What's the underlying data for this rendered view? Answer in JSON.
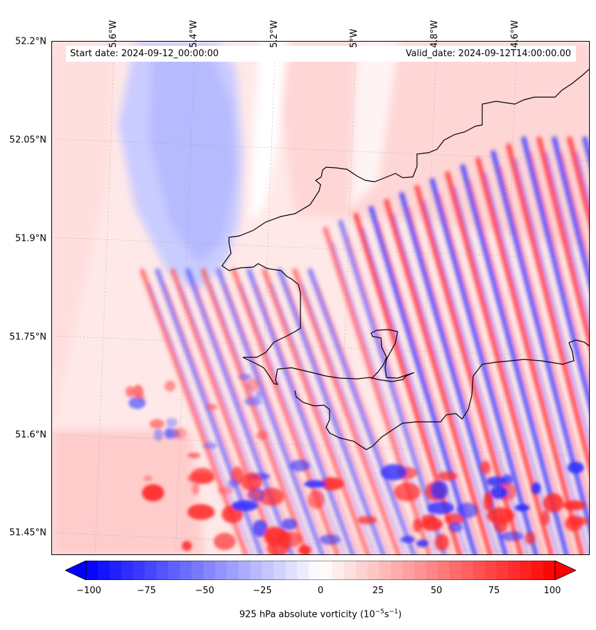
{
  "header": {
    "start_date": "Start date: 2024-09-12_00:00:00",
    "valid_date": "Valid_date: 2024-09-12T14:00:00.00"
  },
  "lat_labels": [
    "52.2°N",
    "52.05°N",
    "51.9°N",
    "51.75°N",
    "51.6°N",
    "51.45°N"
  ],
  "lon_labels": [
    "5.6°W",
    "5.4°W",
    "5.2°W",
    "5°W",
    "4.8°W",
    "4.6°W"
  ],
  "colorbar": {
    "ticks": [
      "−100",
      "−75",
      "−50",
      "−25",
      "0",
      "25",
      "50",
      "75",
      "100"
    ],
    "title_main": "925 hPa absolute vorticity (10",
    "title_exp1": "−5",
    "title_mid": "s",
    "title_exp2": "−1",
    "title_end": ")",
    "min_color": "#0000ff",
    "max_color": "#ff0000",
    "extend": "both"
  },
  "colors": {
    "negative": "#0000ff",
    "positive": "#ff0000",
    "background": "#fff0f0",
    "coastline": "#000000"
  }
}
